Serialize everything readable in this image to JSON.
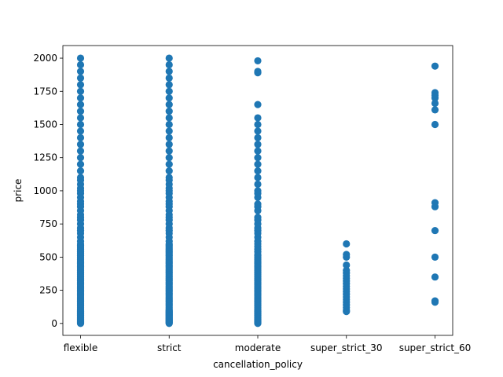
{
  "chart_data": {
    "type": "scatter",
    "title": "",
    "xlabel": "cancellation_policy",
    "ylabel": "price",
    "categories": [
      "flexible",
      "strict",
      "moderate",
      "super_strict_30",
      "super_strict_60"
    ],
    "y_ticks": [
      0,
      250,
      500,
      750,
      1000,
      1250,
      1500,
      1750,
      2000
    ],
    "y_tick_labels": [
      "0",
      "250",
      "500",
      "750",
      "1000",
      "1250",
      "1500",
      "1750",
      "2000"
    ],
    "ylim": [
      -90,
      2095
    ],
    "grid": false,
    "marker_color": "#1f77b4",
    "series": [
      {
        "values_by_category": {
          "flexible": [
            0,
            5,
            10,
            15,
            20,
            25,
            30,
            35,
            40,
            45,
            50,
            55,
            60,
            65,
            70,
            75,
            80,
            85,
            90,
            95,
            100,
            110,
            120,
            130,
            140,
            150,
            160,
            170,
            180,
            190,
            200,
            210,
            220,
            230,
            240,
            250,
            260,
            270,
            280,
            290,
            300,
            310,
            320,
            330,
            340,
            350,
            360,
            370,
            380,
            390,
            400,
            410,
            420,
            430,
            440,
            450,
            460,
            470,
            480,
            490,
            500,
            510,
            520,
            530,
            540,
            550,
            560,
            570,
            580,
            590,
            600,
            620,
            650,
            680,
            700,
            720,
            750,
            780,
            800,
            820,
            850,
            880,
            900,
            920,
            950,
            980,
            1000,
            1020,
            1050,
            1080,
            1100,
            1150,
            1200,
            1250,
            1300,
            1350,
            1400,
            1450,
            1500,
            1550,
            1600,
            1650,
            1700,
            1750,
            1800,
            1850,
            1900,
            1950,
            2000
          ],
          "strict": [
            0,
            5,
            10,
            15,
            20,
            25,
            30,
            35,
            40,
            45,
            50,
            55,
            60,
            65,
            70,
            75,
            80,
            85,
            90,
            95,
            100,
            110,
            120,
            130,
            140,
            150,
            160,
            170,
            180,
            190,
            200,
            210,
            220,
            230,
            240,
            250,
            260,
            270,
            280,
            290,
            300,
            310,
            320,
            330,
            340,
            350,
            360,
            370,
            380,
            390,
            400,
            410,
            420,
            430,
            440,
            450,
            460,
            470,
            480,
            490,
            500,
            510,
            520,
            530,
            540,
            550,
            560,
            570,
            580,
            590,
            600,
            620,
            650,
            680,
            700,
            720,
            750,
            780,
            800,
            820,
            850,
            880,
            900,
            920,
            950,
            980,
            1000,
            1020,
            1050,
            1080,
            1100,
            1150,
            1200,
            1250,
            1300,
            1350,
            1400,
            1450,
            1500,
            1550,
            1600,
            1650,
            1700,
            1750,
            1800,
            1850,
            1900,
            1950,
            2000
          ],
          "moderate": [
            0,
            5,
            10,
            15,
            20,
            25,
            30,
            35,
            40,
            45,
            50,
            55,
            60,
            65,
            70,
            75,
            80,
            85,
            90,
            95,
            100,
            110,
            120,
            130,
            140,
            150,
            160,
            170,
            180,
            190,
            200,
            210,
            220,
            230,
            240,
            250,
            260,
            270,
            280,
            290,
            300,
            310,
            320,
            330,
            340,
            350,
            360,
            370,
            380,
            390,
            400,
            410,
            420,
            430,
            440,
            450,
            460,
            470,
            480,
            490,
            500,
            510,
            520,
            540,
            560,
            580,
            600,
            620,
            650,
            680,
            700,
            720,
            750,
            780,
            800,
            850,
            880,
            900,
            950,
            980,
            1000,
            1050,
            1100,
            1150,
            1200,
            1250,
            1300,
            1350,
            1400,
            1450,
            1500,
            1550,
            1650,
            1890,
            1900,
            1980
          ],
          "super_strict_30": [
            90,
            100,
            120,
            140,
            160,
            180,
            200,
            220,
            240,
            260,
            280,
            300,
            320,
            340,
            360,
            380,
            400,
            440,
            500,
            520,
            600
          ],
          "super_strict_60": [
            160,
            170,
            350,
            500,
            700,
            880,
            910,
            1500,
            1610,
            1660,
            1700,
            1720,
            1740,
            1940
          ]
        }
      }
    ]
  }
}
